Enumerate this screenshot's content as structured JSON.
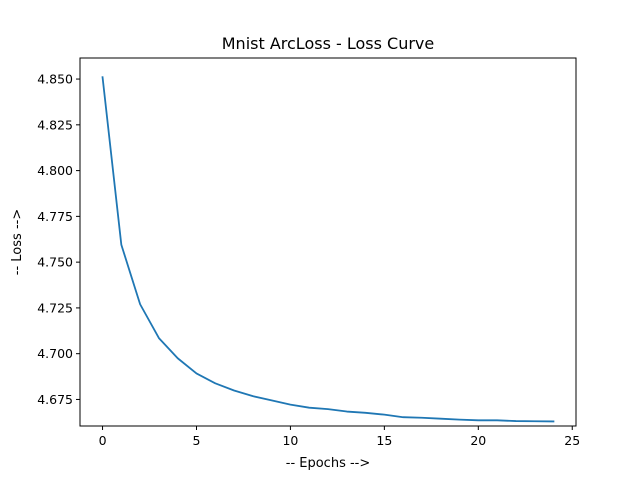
{
  "chart_data": {
    "type": "line",
    "title": "Mnist ArcLoss - Loss Curve",
    "xlabel": "-- Epochs -->",
    "ylabel": "-- Loss -->",
    "xlim": [
      -1.2,
      25.2
    ],
    "ylim": [
      4.6605,
      4.8615
    ],
    "x_ticks": [
      0,
      5,
      10,
      15,
      20,
      25
    ],
    "x_tick_labels": [
      "0",
      "5",
      "10",
      "15",
      "20",
      "25"
    ],
    "y_ticks": [
      4.675,
      4.7,
      4.725,
      4.75,
      4.775,
      4.8,
      4.825,
      4.85
    ],
    "y_tick_labels": [
      "4.675",
      "4.700",
      "4.725",
      "4.750",
      "4.775",
      "4.800",
      "4.825",
      "4.850"
    ],
    "grid": false,
    "series": [
      {
        "color": "#1f77b4",
        "x": [
          0,
          1,
          2,
          3,
          4,
          5,
          6,
          7,
          8,
          9,
          10,
          11,
          12,
          13,
          14,
          15,
          16,
          17,
          18,
          19,
          20,
          21,
          22,
          23,
          24
        ],
        "y": [
          4.851,
          4.7595,
          4.727,
          4.7085,
          4.6975,
          4.6892,
          4.6838,
          4.6799,
          4.6768,
          4.6745,
          4.6722,
          4.6705,
          4.6697,
          4.6684,
          4.6677,
          4.6667,
          4.6653,
          4.665,
          4.6645,
          4.664,
          4.6636,
          4.6636,
          4.6632,
          4.6631,
          4.663
        ]
      }
    ]
  }
}
